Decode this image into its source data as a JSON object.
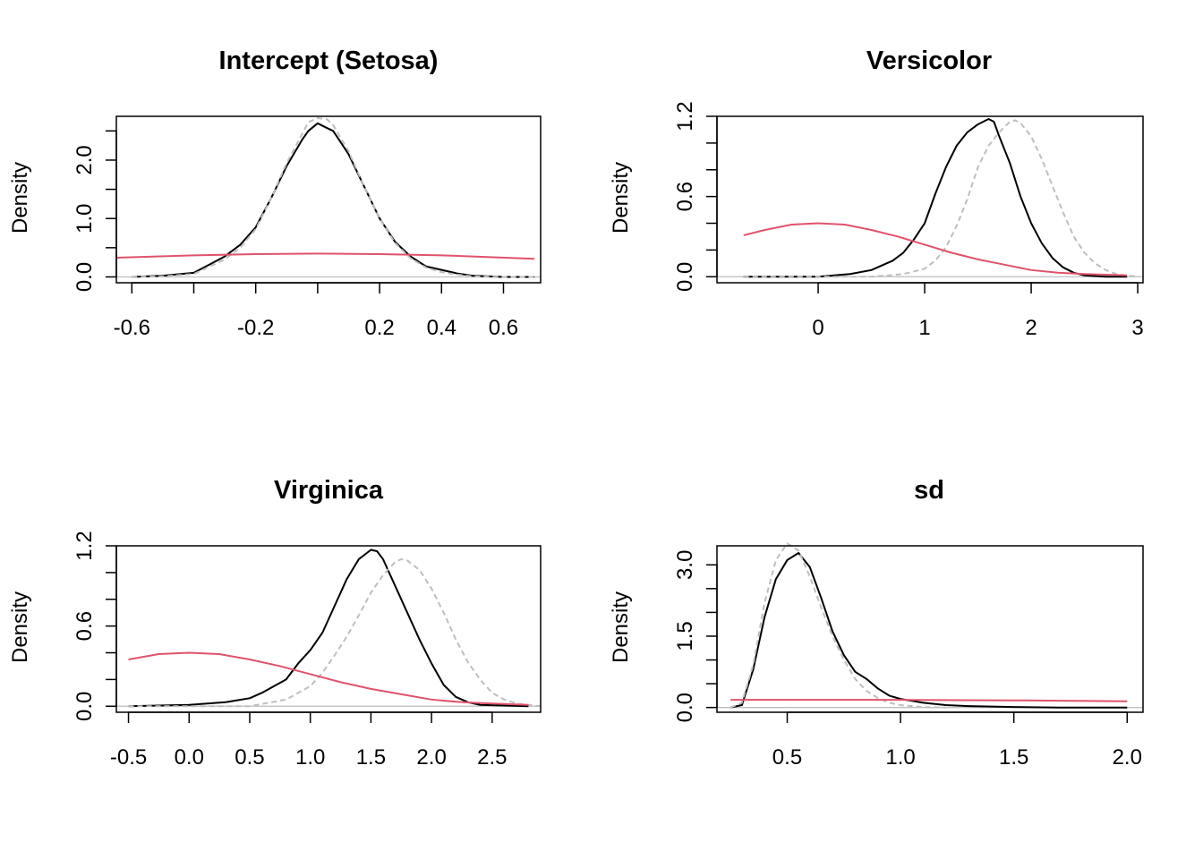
{
  "colors": {
    "posterior": "#000000",
    "reference": "#bebebe",
    "prior": "#df536b",
    "zero_line": "#bebebe"
  },
  "chart_data": [
    {
      "type": "line",
      "title": "Intercept (Setosa)",
      "xlabel": "",
      "ylabel": "Density",
      "xlim": [
        -0.65,
        0.72
      ],
      "ylim": [
        -0.1,
        2.75
      ],
      "x_ticks": [
        -0.6,
        -0.4,
        -0.2,
        0.0,
        0.2,
        0.4,
        0.6
      ],
      "x_tick_labels": [
        "-0.6",
        "",
        "-0.2",
        "",
        "0.2",
        "0.4",
        "0.6"
      ],
      "y_ticks": [
        0.0,
        0.5,
        1.0,
        1.5,
        2.0,
        2.5
      ],
      "y_tick_labels": [
        "0.0",
        "",
        "1.0",
        "",
        "2.0",
        ""
      ],
      "series": [
        {
          "role": "posterior",
          "style": "solid",
          "x": [
            -0.6,
            -0.5,
            -0.4,
            -0.3,
            -0.25,
            -0.2,
            -0.15,
            -0.1,
            -0.05,
            -0.03,
            0.0,
            0.03,
            0.05,
            0.1,
            0.15,
            0.2,
            0.25,
            0.3,
            0.35,
            0.4,
            0.45,
            0.5,
            0.6,
            0.7
          ],
          "y": [
            0.0,
            0.02,
            0.07,
            0.35,
            0.55,
            0.85,
            1.35,
            1.9,
            2.35,
            2.5,
            2.63,
            2.55,
            2.5,
            2.1,
            1.55,
            1.0,
            0.6,
            0.35,
            0.18,
            0.12,
            0.06,
            0.02,
            0.0,
            0.0
          ]
        },
        {
          "role": "reference",
          "style": "dashed",
          "x": [
            -0.6,
            -0.5,
            -0.4,
            -0.3,
            -0.25,
            -0.2,
            -0.15,
            -0.1,
            -0.05,
            -0.03,
            0.0,
            0.03,
            0.05,
            0.1,
            0.15,
            0.2,
            0.25,
            0.3,
            0.35,
            0.4,
            0.45,
            0.5,
            0.6,
            0.7
          ],
          "y": [
            0.0,
            0.01,
            0.05,
            0.3,
            0.5,
            0.82,
            1.35,
            1.95,
            2.45,
            2.65,
            2.72,
            2.7,
            2.6,
            2.15,
            1.55,
            1.0,
            0.58,
            0.32,
            0.16,
            0.08,
            0.04,
            0.01,
            0.0,
            0.0
          ]
        },
        {
          "role": "prior",
          "style": "solid",
          "x": [
            -0.65,
            -0.4,
            -0.2,
            0.0,
            0.2,
            0.4,
            0.7
          ],
          "y": [
            0.33,
            0.37,
            0.39,
            0.4,
            0.39,
            0.37,
            0.31
          ]
        }
      ]
    },
    {
      "type": "line",
      "title": "Versicolor",
      "xlabel": "",
      "ylabel": "Density",
      "xlim": [
        -0.95,
        3.05
      ],
      "ylim": [
        -0.045,
        1.2
      ],
      "x_ticks": [
        0,
        1,
        2,
        3
      ],
      "x_tick_labels": [
        "0",
        "1",
        "2",
        "3"
      ],
      "y_ticks": [
        0.0,
        0.2,
        0.4,
        0.6,
        0.8,
        1.0,
        1.2
      ],
      "y_tick_labels": [
        "0.0",
        "",
        "",
        "0.6",
        "",
        "",
        "1.2"
      ],
      "series": [
        {
          "role": "posterior",
          "style": "solid",
          "x": [
            -0.7,
            0.0,
            0.3,
            0.5,
            0.7,
            0.8,
            0.9,
            1.0,
            1.1,
            1.2,
            1.3,
            1.4,
            1.5,
            1.6,
            1.65,
            1.7,
            1.8,
            1.9,
            2.0,
            2.1,
            2.2,
            2.3,
            2.4,
            2.5,
            2.6,
            2.7,
            2.9
          ],
          "y": [
            0.0,
            0.0,
            0.02,
            0.05,
            0.12,
            0.18,
            0.28,
            0.4,
            0.62,
            0.82,
            0.98,
            1.08,
            1.14,
            1.18,
            1.16,
            1.05,
            0.85,
            0.6,
            0.4,
            0.25,
            0.14,
            0.07,
            0.03,
            0.01,
            0.005,
            0.0,
            0.0
          ]
        },
        {
          "role": "reference",
          "style": "dashed",
          "x": [
            -0.7,
            0.5,
            0.8,
            1.0,
            1.1,
            1.2,
            1.3,
            1.4,
            1.5,
            1.6,
            1.7,
            1.8,
            1.85,
            1.9,
            2.0,
            2.1,
            2.2,
            2.3,
            2.4,
            2.5,
            2.6,
            2.7,
            2.8,
            2.9,
            3.0
          ],
          "y": [
            0.0,
            0.0,
            0.02,
            0.06,
            0.12,
            0.22,
            0.38,
            0.58,
            0.82,
            0.98,
            1.08,
            1.16,
            1.17,
            1.15,
            1.05,
            0.88,
            0.68,
            0.48,
            0.3,
            0.18,
            0.1,
            0.05,
            0.02,
            0.01,
            0.0
          ]
        },
        {
          "role": "prior",
          "style": "solid",
          "x": [
            -0.7,
            -0.5,
            -0.25,
            0.0,
            0.25,
            0.5,
            0.75,
            1.0,
            1.25,
            1.5,
            1.75,
            2.0,
            2.25,
            2.5,
            2.9
          ],
          "y": [
            0.31,
            0.35,
            0.39,
            0.4,
            0.39,
            0.35,
            0.3,
            0.24,
            0.18,
            0.13,
            0.09,
            0.05,
            0.03,
            0.02,
            0.01
          ]
        }
      ]
    },
    {
      "type": "line",
      "title": "Virginica",
      "xlabel": "",
      "ylabel": "Density",
      "xlim": [
        -0.6,
        2.9
      ],
      "ylim": [
        -0.045,
        1.2
      ],
      "x_ticks": [
        -0.5,
        0.0,
        0.5,
        1.0,
        1.5,
        2.0,
        2.5
      ],
      "x_tick_labels": [
        "-0.5",
        "0.0",
        "0.5",
        "1.0",
        "1.5",
        "2.0",
        "2.5"
      ],
      "y_ticks": [
        0.0,
        0.2,
        0.4,
        0.6,
        0.8,
        1.0,
        1.2
      ],
      "y_tick_labels": [
        "0.0",
        "",
        "",
        "0.6",
        "",
        "",
        "1.2"
      ],
      "series": [
        {
          "role": "posterior",
          "style": "solid",
          "x": [
            -0.5,
            0.0,
            0.3,
            0.5,
            0.6,
            0.7,
            0.8,
            0.9,
            1.0,
            1.1,
            1.2,
            1.3,
            1.4,
            1.5,
            1.55,
            1.6,
            1.7,
            1.8,
            1.9,
            2.0,
            2.1,
            2.2,
            2.3,
            2.4,
            2.6,
            2.8
          ],
          "y": [
            0.0,
            0.01,
            0.03,
            0.06,
            0.1,
            0.15,
            0.2,
            0.32,
            0.42,
            0.55,
            0.75,
            0.95,
            1.1,
            1.17,
            1.16,
            1.1,
            0.9,
            0.7,
            0.5,
            0.32,
            0.16,
            0.07,
            0.03,
            0.01,
            0.005,
            0.0
          ]
        },
        {
          "role": "reference",
          "style": "dashed",
          "x": [
            -0.5,
            0.5,
            0.8,
            1.0,
            1.1,
            1.2,
            1.3,
            1.4,
            1.5,
            1.6,
            1.7,
            1.75,
            1.8,
            1.9,
            2.0,
            2.1,
            2.2,
            2.3,
            2.4,
            2.5,
            2.6,
            2.7,
            2.8,
            2.9
          ],
          "y": [
            0.0,
            0.0,
            0.05,
            0.15,
            0.25,
            0.38,
            0.52,
            0.68,
            0.85,
            0.98,
            1.08,
            1.1,
            1.09,
            1.02,
            0.88,
            0.7,
            0.5,
            0.33,
            0.2,
            0.1,
            0.05,
            0.02,
            0.01,
            0.0
          ]
        },
        {
          "role": "prior",
          "style": "solid",
          "x": [
            -0.5,
            -0.25,
            0.0,
            0.25,
            0.5,
            0.75,
            1.0,
            1.25,
            1.5,
            1.75,
            2.0,
            2.25,
            2.5,
            2.8
          ],
          "y": [
            0.35,
            0.39,
            0.4,
            0.39,
            0.35,
            0.3,
            0.24,
            0.18,
            0.13,
            0.09,
            0.05,
            0.03,
            0.02,
            0.01
          ]
        }
      ]
    },
    {
      "type": "line",
      "title": "sd",
      "xlabel": "",
      "ylabel": "Density",
      "xlim": [
        0.19,
        2.07
      ],
      "ylim": [
        -0.1,
        3.4
      ],
      "x_ticks": [
        0.5,
        1.0,
        1.5,
        2.0
      ],
      "x_tick_labels": [
        "0.5",
        "1.0",
        "1.5",
        "2.0"
      ],
      "y_ticks": [
        0.0,
        0.5,
        1.0,
        1.5,
        2.0,
        2.5,
        3.0
      ],
      "y_tick_labels": [
        "0.0",
        "",
        "",
        "1.5",
        "",
        "",
        "3.0"
      ],
      "series": [
        {
          "role": "posterior",
          "style": "solid",
          "x": [
            0.25,
            0.3,
            0.35,
            0.4,
            0.45,
            0.5,
            0.55,
            0.6,
            0.65,
            0.7,
            0.75,
            0.8,
            0.85,
            0.9,
            0.95,
            1.0,
            1.1,
            1.2,
            1.3,
            1.5,
            1.7,
            2.0
          ],
          "y": [
            0.0,
            0.05,
            0.8,
            1.9,
            2.7,
            3.1,
            3.25,
            2.95,
            2.3,
            1.6,
            1.1,
            0.75,
            0.6,
            0.4,
            0.25,
            0.18,
            0.1,
            0.05,
            0.03,
            0.01,
            0.0,
            0.0
          ]
        },
        {
          "role": "reference",
          "style": "dashed",
          "x": [
            0.25,
            0.3,
            0.35,
            0.4,
            0.45,
            0.5,
            0.55,
            0.6,
            0.65,
            0.7,
            0.75,
            0.8,
            0.85,
            0.9,
            0.95,
            1.0,
            1.1,
            1.2
          ],
          "y": [
            0.0,
            0.1,
            0.9,
            2.2,
            3.1,
            3.45,
            3.3,
            2.75,
            2.1,
            1.5,
            1.0,
            0.6,
            0.35,
            0.2,
            0.1,
            0.05,
            0.01,
            0.0
          ]
        },
        {
          "role": "prior",
          "style": "solid",
          "x": [
            0.25,
            0.6,
            1.0,
            1.5,
            2.0
          ],
          "y": [
            0.16,
            0.16,
            0.16,
            0.15,
            0.13
          ]
        }
      ]
    }
  ]
}
